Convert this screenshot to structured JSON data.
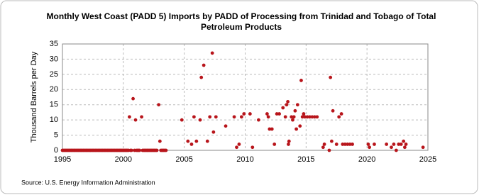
{
  "chart_data": {
    "type": "scatter",
    "title": "Monthly West Coast (PADD 5) Imports by PADD of Processing from Trinidad and Tobago of Total Petroleum Products",
    "ylabel": "Thousand Barrels per Day",
    "source": "Source: U.S. Energy Information Administration",
    "color": "#b8151b",
    "xlim": [
      1995,
      2025
    ],
    "ylim": [
      0,
      35
    ],
    "xticks": [
      1995,
      2000,
      2005,
      2010,
      2015,
      2020,
      2025
    ],
    "yticks": [
      0,
      5,
      10,
      15,
      20,
      25,
      30,
      35
    ],
    "grid": true,
    "x": [
      1995,
      1995.08,
      1995.17,
      1995.25,
      1995.33,
      1995.42,
      1995.5,
      1995.58,
      1995.67,
      1995.75,
      1995.83,
      1995.92,
      1996,
      1996.08,
      1996.17,
      1996.25,
      1996.33,
      1996.42,
      1996.5,
      1996.58,
      1996.67,
      1996.75,
      1996.83,
      1996.92,
      1997,
      1997.08,
      1997.17,
      1997.25,
      1997.33,
      1997.42,
      1997.5,
      1997.58,
      1997.67,
      1997.75,
      1997.83,
      1997.92,
      1998,
      1998.08,
      1998.17,
      1998.25,
      1998.33,
      1998.42,
      1998.5,
      1998.58,
      1998.67,
      1998.75,
      1998.83,
      1998.92,
      1999,
      1999.08,
      1999.17,
      1999.25,
      1999.33,
      1999.42,
      1999.5,
      1999.58,
      1999.67,
      1999.75,
      1999.83,
      1999.92,
      2000,
      2000.08,
      2000.17,
      2000.25,
      2000.33,
      2000.42,
      2000.58,
      2000.67,
      2000.92,
      2001.08,
      2001.17,
      2001.25,
      2001.33,
      2001.58,
      2001.67,
      2001.75,
      2001.83,
      2001.92,
      2002,
      2002.08,
      2002.17,
      2002.25,
      2002.33,
      2002.42,
      2002.5,
      2002.58,
      2002.67,
      2002.75,
      2003.08,
      2003.17,
      2003.25,
      2003.33,
      2003.42,
      2003.5,
      2000.5,
      2000.8,
      2001,
      2001.5,
      2002.9,
      2003,
      2004.8,
      2005.3,
      2005.6,
      2005.8,
      2006,
      2006.3,
      2006.4,
      2006.6,
      2006.9,
      2007.1,
      2007.3,
      2007.4,
      2007.6,
      2008.4,
      2009.1,
      2009.3,
      2009.5,
      2009.7,
      2009.9,
      2010.4,
      2010.6,
      2011.1,
      2011.8,
      2011.9,
      2012,
      2012.2,
      2012.4,
      2012.6,
      2012.8,
      2013.1,
      2013.3,
      2013.4,
      2013.5,
      2013.55,
      2013.6,
      2013.8,
      2013.9,
      2014,
      2014.1,
      2014.2,
      2014.3,
      2014.5,
      2014.6,
      2014.7,
      2014.8,
      2014.9,
      2015.1,
      2015.3,
      2015.5,
      2015.7,
      2015.9,
      2016.4,
      2016.5,
      2016.9,
      2017,
      2017.1,
      2017.2,
      2017.5,
      2017.7,
      2017.9,
      2018,
      2018.2,
      2018.4,
      2018.6,
      2018.8,
      2020.1,
      2020.2,
      2020.6,
      2021.6,
      2022,
      2022.2,
      2022.4,
      2022.6,
      2022.8,
      2023,
      2023.1,
      2023.2,
      2024.6
    ],
    "values": [
      0,
      0,
      0,
      0,
      0,
      0,
      0,
      0,
      0,
      0,
      0,
      0,
      0,
      0,
      0,
      0,
      0,
      0,
      0,
      0,
      0,
      0,
      0,
      0,
      0,
      0,
      0,
      0,
      0,
      0,
      0,
      0,
      0,
      0,
      0,
      0,
      0,
      0,
      0,
      0,
      0,
      0,
      0,
      0,
      0,
      0,
      0,
      0,
      0,
      0,
      0,
      0,
      0,
      0,
      0,
      0,
      0,
      0,
      0,
      0,
      0,
      0,
      0,
      0,
      0,
      0,
      0,
      0,
      0,
      0,
      0,
      0,
      0,
      0,
      0,
      0,
      0,
      0,
      0,
      0,
      0,
      0,
      0,
      0,
      0,
      0,
      0,
      0,
      0,
      0,
      0,
      0,
      0,
      0,
      11,
      17,
      10,
      11,
      15,
      3,
      10,
      3,
      2,
      11,
      3,
      10,
      24,
      28,
      3,
      11,
      32,
      6,
      11,
      8,
      11,
      1,
      2,
      11,
      12,
      12,
      1,
      10,
      12,
      11,
      7,
      7,
      2,
      12,
      12,
      14,
      11,
      15,
      16,
      2,
      3,
      11,
      10,
      11,
      13,
      7,
      15,
      8,
      23,
      11,
      12,
      11,
      11,
      11,
      11,
      11,
      11,
      1,
      2,
      0,
      24,
      3,
      13,
      2,
      11,
      12,
      2,
      2,
      2,
      2,
      2,
      2,
      1,
      2,
      2,
      1,
      2,
      0,
      2,
      2,
      3,
      1,
      2,
      1
    ]
  }
}
